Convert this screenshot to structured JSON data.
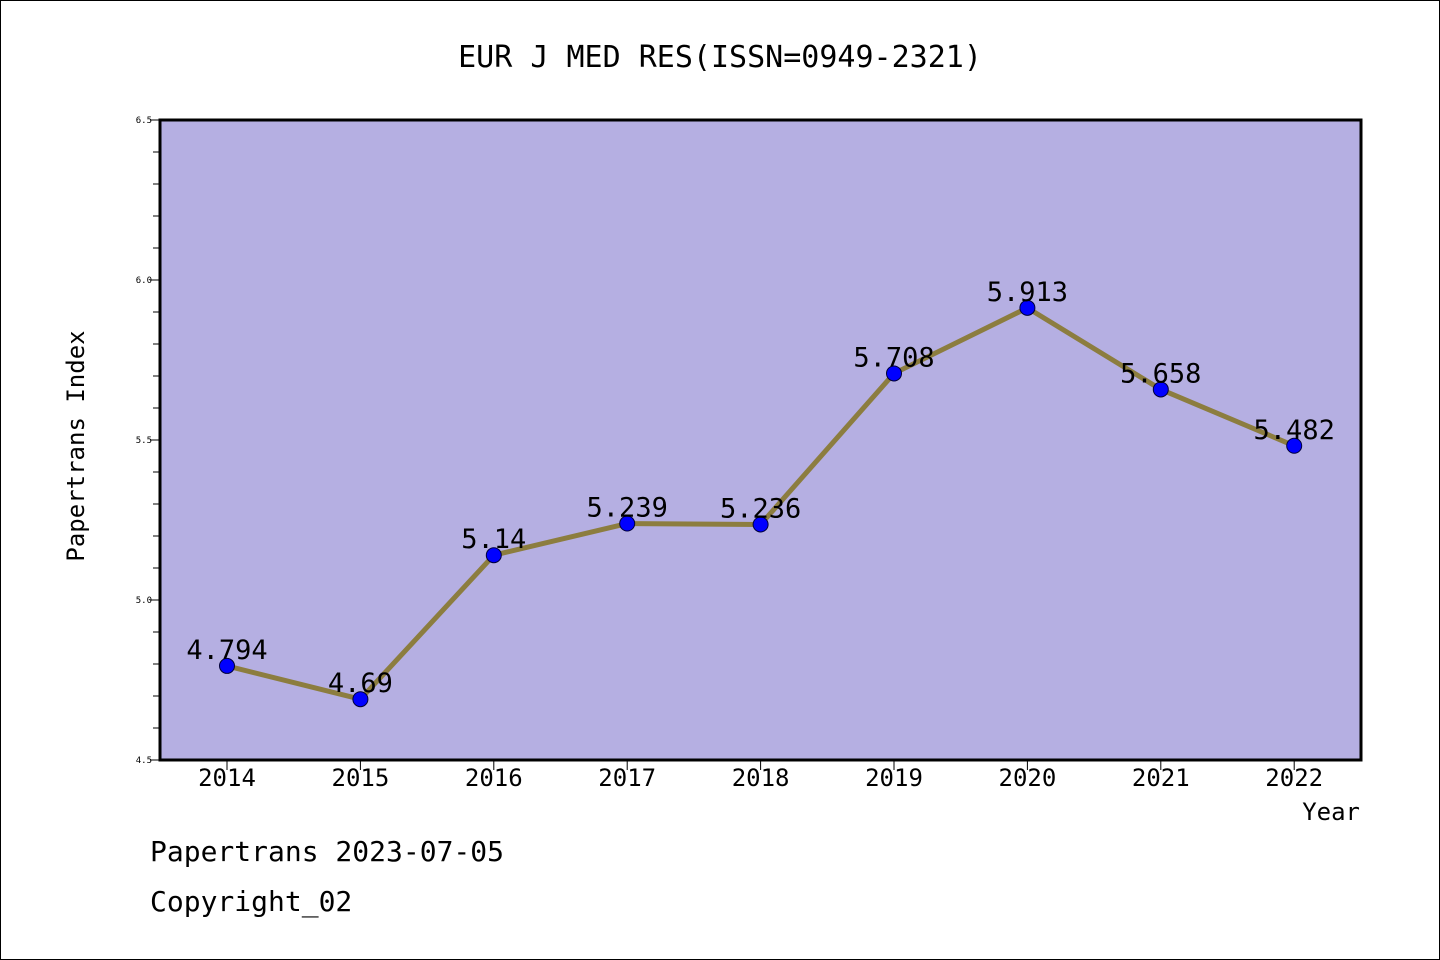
{
  "chart_data": {
    "type": "line",
    "title": "EUR J MED RES(ISSN=0949-2321)",
    "xlabel": "Year",
    "ylabel": "Papertrans Index",
    "categories": [
      "2014",
      "2015",
      "2016",
      "2017",
      "2018",
      "2019",
      "2020",
      "2021",
      "2022"
    ],
    "values": [
      4.794,
      4.69,
      5.14,
      5.239,
      5.236,
      5.708,
      5.913,
      5.658,
      5.482
    ],
    "data_labels": [
      "4.794",
      "4.69",
      "5.14",
      "5.239",
      "5.236",
      "5.708",
      "5.913",
      "5.658",
      "5.482"
    ],
    "ylim": [
      4.5,
      6.5
    ],
    "yticks": [
      4.5,
      5.0,
      5.5,
      6.0,
      6.5
    ],
    "ytick_labels": [
      "4.5",
      "5.0",
      "5.5",
      "6.0",
      "6.5"
    ],
    "y_minor_step": 0.1,
    "grid": false,
    "legend": "none",
    "colors": {
      "plot_background": "#b5afe2",
      "line": "#8c7d3f",
      "marker": "#0000ff",
      "axes": "#000000"
    }
  },
  "footer": {
    "source": "Papertrans 2023-07-05",
    "copyright": "Copyright_02"
  }
}
